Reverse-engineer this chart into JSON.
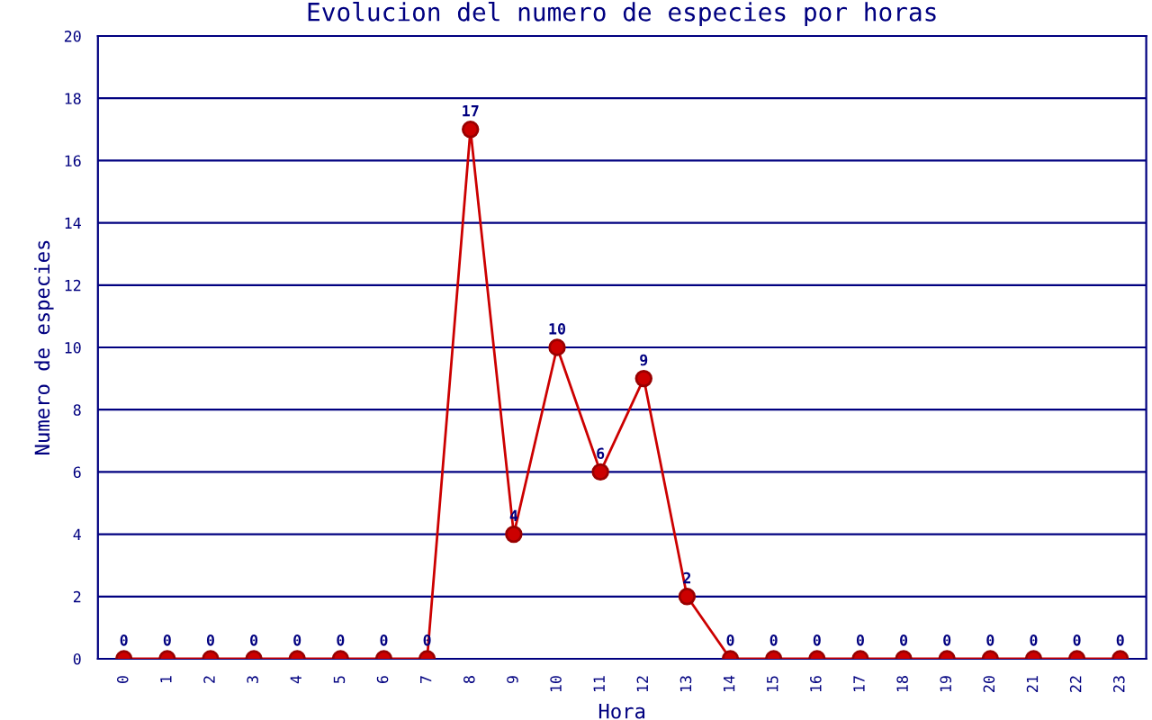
{
  "chart_data": {
    "type": "line",
    "title": "Evolucion del numero de especies por horas",
    "xlabel": "Hora",
    "ylabel": "Numero de especies",
    "categories": [
      "0",
      "1",
      "2",
      "3",
      "4",
      "5",
      "6",
      "7",
      "8",
      "9",
      "10",
      "11",
      "12",
      "13",
      "14",
      "15",
      "16",
      "17",
      "18",
      "19",
      "20",
      "21",
      "22",
      "23"
    ],
    "series": [
      {
        "color": "#cc0000",
        "values": [
          0,
          0,
          0,
          0,
          0,
          0,
          0,
          0,
          17,
          4,
          10,
          6,
          9,
          2,
          0,
          0,
          0,
          0,
          0,
          0,
          0,
          0,
          0,
          0
        ]
      }
    ],
    "ylim": [
      0,
      20
    ],
    "yticks": [
      0,
      2,
      4,
      6,
      8,
      10,
      12,
      14,
      16,
      18,
      20
    ],
    "grid": "y",
    "marker": "circle",
    "line_style": "solid",
    "data_labels": true
  }
}
